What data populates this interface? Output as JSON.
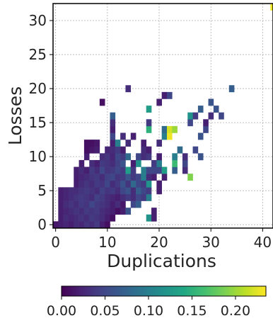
{
  "chart_data": {
    "type": "heatmap",
    "title": "",
    "xlabel": "Duplications",
    "ylabel": "Losses",
    "xlim": [
      -0.5,
      42
    ],
    "ylim": [
      -0.5,
      32.5
    ],
    "x_ticks": [
      0,
      10,
      20,
      30,
      40
    ],
    "y_ticks": [
      0,
      5,
      10,
      15,
      20,
      25,
      30
    ],
    "grid": true,
    "colormap": "viridis",
    "colorbar": {
      "orientation": "horizontal",
      "placement": "bottom",
      "min": 0.0,
      "max": 0.235,
      "ticks": [
        0.0,
        0.05,
        0.1,
        0.15,
        0.2
      ],
      "tick_labels": [
        "0.00",
        "0.05",
        "0.10",
        "0.15",
        "0.20"
      ]
    },
    "note_cells": "each cell: [duplications, losses, value]; blank cells have no data",
    "cells": [
      [
        0,
        0,
        0.015
      ],
      [
        1,
        0,
        0.02
      ],
      [
        2,
        0,
        0.025
      ],
      [
        3,
        0,
        0.02
      ],
      [
        4,
        0,
        0.03
      ],
      [
        5,
        0,
        0.025
      ],
      [
        6,
        0,
        0.035
      ],
      [
        7,
        0,
        0.03
      ],
      [
        8,
        0,
        0.04
      ],
      [
        9,
        0,
        0.02
      ],
      [
        10,
        0,
        0.01
      ],
      [
        1,
        1,
        0.02
      ],
      [
        2,
        1,
        0.03
      ],
      [
        3,
        1,
        0.025
      ],
      [
        4,
        1,
        0.03
      ],
      [
        5,
        1,
        0.035
      ],
      [
        6,
        1,
        0.03
      ],
      [
        7,
        1,
        0.04
      ],
      [
        8,
        1,
        0.035
      ],
      [
        9,
        1,
        0.03
      ],
      [
        10,
        1,
        0.02
      ],
      [
        11,
        1,
        0.01
      ],
      [
        18,
        1,
        0.12
      ],
      [
        19,
        1,
        0.02
      ],
      [
        1,
        2,
        0.02
      ],
      [
        2,
        2,
        0.025
      ],
      [
        3,
        2,
        0.03
      ],
      [
        4,
        2,
        0.035
      ],
      [
        5,
        2,
        0.03
      ],
      [
        6,
        2,
        0.04
      ],
      [
        7,
        2,
        0.035
      ],
      [
        8,
        2,
        0.04
      ],
      [
        9,
        2,
        0.03
      ],
      [
        10,
        2,
        0.025
      ],
      [
        11,
        2,
        0.02
      ],
      [
        12,
        2,
        0.01
      ],
      [
        13,
        2,
        0.02
      ],
      [
        14,
        2,
        0.06
      ],
      [
        19,
        2,
        0.02
      ],
      [
        1,
        3,
        0.02
      ],
      [
        2,
        3,
        0.03
      ],
      [
        3,
        3,
        0.035
      ],
      [
        4,
        3,
        0.03
      ],
      [
        5,
        3,
        0.04
      ],
      [
        6,
        3,
        0.035
      ],
      [
        7,
        3,
        0.05
      ],
      [
        8,
        3,
        0.04
      ],
      [
        9,
        3,
        0.035
      ],
      [
        10,
        3,
        0.03
      ],
      [
        11,
        3,
        0.02
      ],
      [
        12,
        3,
        0.03
      ],
      [
        13,
        3,
        0.015
      ],
      [
        15,
        3,
        0.05
      ],
      [
        16,
        3,
        0.07
      ],
      [
        1,
        4,
        0.02
      ],
      [
        2,
        4,
        0.025
      ],
      [
        3,
        4,
        0.03
      ],
      [
        4,
        4,
        0.035
      ],
      [
        5,
        4,
        0.04
      ],
      [
        6,
        4,
        0.035
      ],
      [
        7,
        4,
        0.03
      ],
      [
        8,
        4,
        0.045
      ],
      [
        9,
        4,
        0.04
      ],
      [
        10,
        4,
        0.03
      ],
      [
        11,
        4,
        0.025
      ],
      [
        12,
        4,
        0.02
      ],
      [
        13,
        4,
        0.03
      ],
      [
        14,
        4,
        0.04
      ],
      [
        15,
        4,
        0.03
      ],
      [
        16,
        4,
        0.05
      ],
      [
        17,
        4,
        0.04
      ],
      [
        18,
        4,
        0.1
      ],
      [
        1,
        5,
        0.02
      ],
      [
        2,
        5,
        0.025
      ],
      [
        3,
        5,
        0.03
      ],
      [
        4,
        5,
        0.03
      ],
      [
        5,
        5,
        0.035
      ],
      [
        6,
        5,
        0.04
      ],
      [
        7,
        5,
        0.035
      ],
      [
        8,
        5,
        0.03
      ],
      [
        9,
        5,
        0.045
      ],
      [
        10,
        5,
        0.035
      ],
      [
        11,
        5,
        0.04
      ],
      [
        12,
        5,
        0.03
      ],
      [
        13,
        5,
        0.05
      ],
      [
        14,
        5,
        0.06
      ],
      [
        15,
        5,
        0.03
      ],
      [
        16,
        5,
        0.07
      ],
      [
        17,
        5,
        0.05
      ],
      [
        18,
        5,
        0.04
      ],
      [
        20,
        5,
        0.02
      ],
      [
        4,
        6,
        0.02
      ],
      [
        5,
        6,
        0.03
      ],
      [
        6,
        6,
        0.035
      ],
      [
        7,
        6,
        0.03
      ],
      [
        8,
        6,
        0.04
      ],
      [
        9,
        6,
        0.035
      ],
      [
        10,
        6,
        0.05
      ],
      [
        11,
        6,
        0.03
      ],
      [
        12,
        6,
        0.04
      ],
      [
        13,
        6,
        0.06
      ],
      [
        14,
        6,
        0.035
      ],
      [
        15,
        6,
        0.08
      ],
      [
        16,
        6,
        0.05
      ],
      [
        17,
        6,
        0.04
      ],
      [
        18,
        6,
        0.12
      ],
      [
        20,
        6,
        0.02
      ],
      [
        4,
        7,
        0.02
      ],
      [
        5,
        7,
        0.025
      ],
      [
        6,
        7,
        0.03
      ],
      [
        7,
        7,
        0.035
      ],
      [
        8,
        7,
        0.04
      ],
      [
        9,
        7,
        0.03
      ],
      [
        10,
        7,
        0.045
      ],
      [
        11,
        7,
        0.05
      ],
      [
        12,
        7,
        0.035
      ],
      [
        13,
        7,
        0.04
      ],
      [
        14,
        7,
        0.06
      ],
      [
        15,
        7,
        0.04
      ],
      [
        16,
        7,
        0.05
      ],
      [
        17,
        7,
        0.1
      ],
      [
        18,
        7,
        0.03
      ],
      [
        19,
        7,
        0.02
      ],
      [
        21,
        7,
        0.02
      ],
      [
        26,
        7,
        0.19
      ],
      [
        4,
        8,
        0.02
      ],
      [
        5,
        8,
        0.03
      ],
      [
        6,
        8,
        0.02
      ],
      [
        7,
        8,
        0.04
      ],
      [
        8,
        8,
        0.03
      ],
      [
        9,
        8,
        0.05
      ],
      [
        10,
        8,
        0.035
      ],
      [
        11,
        8,
        0.04
      ],
      [
        12,
        8,
        0.05
      ],
      [
        13,
        8,
        0.04
      ],
      [
        14,
        8,
        0.13
      ],
      [
        15,
        8,
        0.04
      ],
      [
        17,
        8,
        0.1
      ],
      [
        18,
        8,
        0.05
      ],
      [
        19,
        8,
        0.05
      ],
      [
        20,
        8,
        0.05
      ],
      [
        21,
        8,
        0.13
      ],
      [
        23,
        8,
        0.07
      ],
      [
        25,
        8,
        0.03
      ],
      [
        5,
        9,
        0.02
      ],
      [
        7,
        9,
        0.03
      ],
      [
        8,
        9,
        0.02
      ],
      [
        9,
        9,
        0.04
      ],
      [
        10,
        9,
        0.035
      ],
      [
        11,
        9,
        0.03
      ],
      [
        12,
        9,
        0.045
      ],
      [
        13,
        9,
        0.06
      ],
      [
        15,
        9,
        0.02
      ],
      [
        16,
        9,
        0.12
      ],
      [
        19,
        9,
        0.04
      ],
      [
        20,
        9,
        0.1
      ],
      [
        23,
        9,
        0.16
      ],
      [
        25,
        9,
        0.05
      ],
      [
        6,
        10,
        0.02
      ],
      [
        9,
        10,
        0.03
      ],
      [
        10,
        10,
        0.035
      ],
      [
        11,
        10,
        0.025
      ],
      [
        12,
        10,
        0.05
      ],
      [
        13,
        10,
        0.04
      ],
      [
        14,
        10,
        0.08
      ],
      [
        16,
        10,
        0.05
      ],
      [
        17,
        10,
        0.03
      ],
      [
        18,
        10,
        0.04
      ],
      [
        20,
        10,
        0.02
      ],
      [
        23,
        10,
        0.1
      ],
      [
        25,
        10,
        0.03
      ],
      [
        28,
        10,
        0.06
      ],
      [
        6,
        11,
        0.01
      ],
      [
        7,
        11,
        0.015
      ],
      [
        8,
        11,
        0.02
      ],
      [
        10,
        11,
        0.025
      ],
      [
        11,
        11,
        0.03
      ],
      [
        12,
        11,
        0.04
      ],
      [
        13,
        11,
        0.02
      ],
      [
        17,
        11,
        0.03
      ],
      [
        18,
        11,
        0.02
      ],
      [
        24,
        11,
        0.08
      ],
      [
        27,
        11,
        0.05
      ],
      [
        6,
        12,
        0.01
      ],
      [
        7,
        12,
        0.01
      ],
      [
        8,
        12,
        0.015
      ],
      [
        11,
        12,
        0.02
      ],
      [
        12,
        12,
        0.1
      ],
      [
        14,
        12,
        0.03
      ],
      [
        17,
        12,
        0.02
      ],
      [
        20,
        12,
        0.03
      ],
      [
        11,
        13,
        0.05
      ],
      [
        13,
        13,
        0.03
      ],
      [
        15,
        13,
        0.02
      ],
      [
        21,
        13,
        0.1
      ],
      [
        22,
        13,
        0.23
      ],
      [
        28,
        13,
        0.06
      ],
      [
        11,
        14,
        0.02
      ],
      [
        18,
        14,
        0.15
      ],
      [
        21,
        14,
        0.08
      ],
      [
        22,
        14,
        0.22
      ],
      [
        23,
        14,
        0.2
      ],
      [
        29,
        14,
        0.05
      ],
      [
        11,
        15,
        0.03
      ],
      [
        18,
        15,
        0.04
      ],
      [
        26,
        15,
        0.05
      ],
      [
        29,
        15,
        0.02
      ],
      [
        11,
        16,
        0.07
      ],
      [
        26,
        16,
        0.12
      ],
      [
        27,
        16,
        0.04
      ],
      [
        30,
        16,
        0.03
      ],
      [
        32,
        16,
        0.05
      ],
      [
        18,
        17,
        0.13
      ],
      [
        28,
        17,
        0.07
      ],
      [
        31,
        17,
        0.06
      ],
      [
        9,
        18,
        0.01
      ],
      [
        20,
        18,
        0.02
      ],
      [
        30,
        18,
        0.06
      ],
      [
        21,
        19,
        0.02
      ],
      [
        22,
        19,
        0.05
      ],
      [
        14,
        20,
        0.03
      ],
      [
        34,
        20,
        0.07
      ],
      [
        42,
        32,
        0.23
      ]
    ]
  }
}
